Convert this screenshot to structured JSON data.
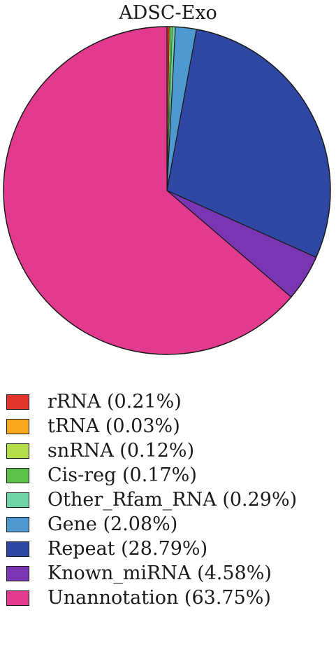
{
  "chart_data": {
    "type": "pie",
    "title": "ADSC-Exo",
    "legend_position": "bottom",
    "slices": [
      {
        "name": "rRNA",
        "value": 0.21,
        "label": "rRNA (0.21%)",
        "color": "#e2342a"
      },
      {
        "name": "tRNA",
        "value": 0.03,
        "label": "tRNA (0.03%)",
        "color": "#f7a81c"
      },
      {
        "name": "snRNA",
        "value": 0.12,
        "label": "snRNA (0.12%)",
        "color": "#b3dd4a"
      },
      {
        "name": "Cis-reg",
        "value": 0.17,
        "label": "Cis-reg (0.17%)",
        "color": "#5cc24a"
      },
      {
        "name": "Other_Rfam_RNA",
        "value": 0.29,
        "label": "Other_Rfam_RNA (0.29%)",
        "color": "#6fd3a5"
      },
      {
        "name": "Gene",
        "value": 2.08,
        "label": "Gene (2.08%)",
        "color": "#4f99d1"
      },
      {
        "name": "Repeat",
        "value": 28.79,
        "label": "Repeat (28.79%)",
        "color": "#2e47a3"
      },
      {
        "name": "Known_miRNA",
        "value": 4.58,
        "label": "Known_miRNA (4.58%)",
        "color": "#7a35b3"
      },
      {
        "name": "Unannotation",
        "value": 63.75,
        "label": "Unannotation (63.75%)",
        "color": "#e23a8e"
      }
    ]
  }
}
